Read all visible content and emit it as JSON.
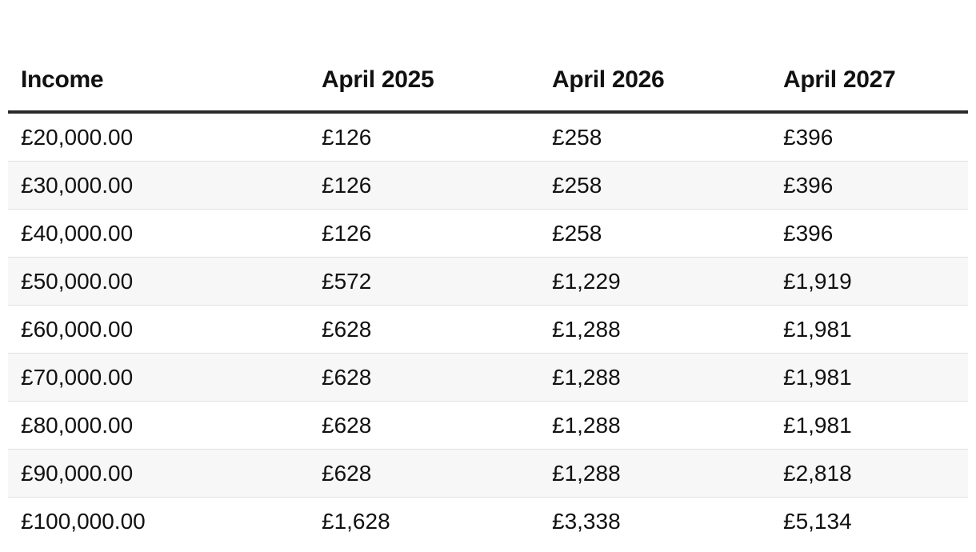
{
  "table": {
    "headers": [
      "Income",
      "April 2025",
      "April 2026",
      "April 2027"
    ],
    "rows": [
      [
        "£20,000.00",
        "£126",
        "£258",
        "£396"
      ],
      [
        "£30,000.00",
        "£126",
        "£258",
        "£396"
      ],
      [
        "£40,000.00",
        "£126",
        "£258",
        "£396"
      ],
      [
        "£50,000.00",
        "£572",
        "£1,229",
        "£1,919"
      ],
      [
        "£60,000.00",
        "£628",
        "£1,288",
        "£1,981"
      ],
      [
        "£70,000.00",
        "£628",
        "£1,288",
        "£1,981"
      ],
      [
        "£80,000.00",
        "£628",
        "£1,288",
        "£1,981"
      ],
      [
        "£90,000.00",
        "£628",
        "£1,288",
        "£2,818"
      ],
      [
        "£100,000.00",
        "£1,628",
        "£3,338",
        "£5,134"
      ]
    ]
  },
  "colors": {
    "header_rule": "#2a2a2a",
    "row_divider": "#e2e2e2",
    "stripe": "#f7f7f7",
    "text": "#111111"
  }
}
